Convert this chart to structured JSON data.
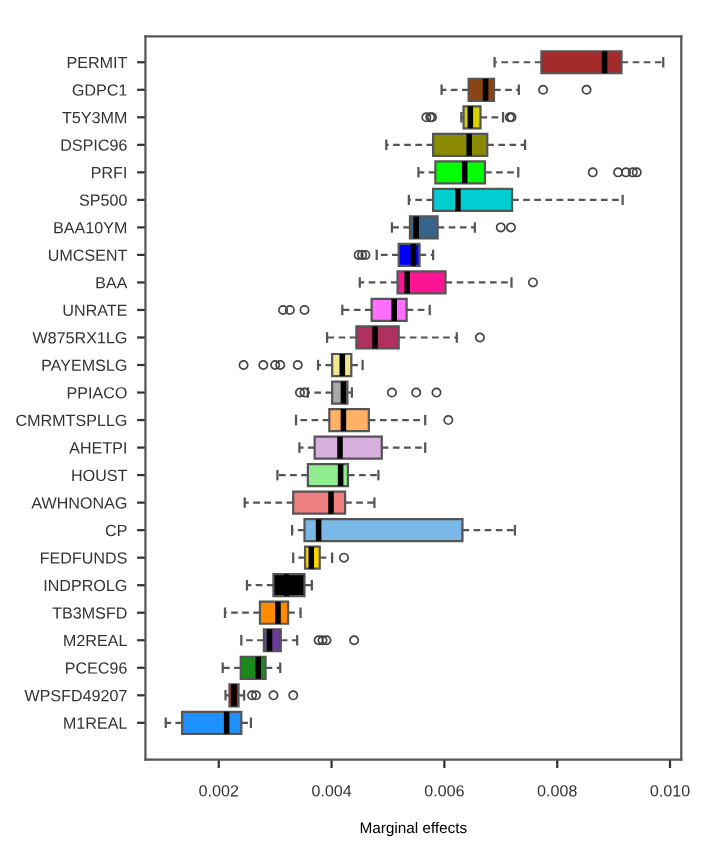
{
  "chart_data": {
    "type": "box",
    "orientation": "horizontal",
    "xlabel": "Marginal effects",
    "categories": [
      "PERMIT",
      "GDPC1",
      "T5Y3MM",
      "DSPIC96",
      "PRFI",
      "SP500",
      "BAA10YM",
      "UMCSENT",
      "BAA",
      "UNRATE",
      "W875RX1LG",
      "PAYEMSLG",
      "PPIACO",
      "CMRMTSPLLG",
      "AHETPI",
      "HOUST",
      "AWHNONAG",
      "CP",
      "FEDFUNDS",
      "INDPROLG",
      "TB3MSFD",
      "M2REAL",
      "PCEC96",
      "WPSFD49207",
      "M1REAL"
    ],
    "colors": [
      "#a52a2a",
      "#8b4513",
      "#d4d400",
      "#8b8b00",
      "#00ff00",
      "#00ced1",
      "#36648b",
      "#0000ff",
      "#ff1493",
      "#ff6eff",
      "#b03060",
      "#f0e68c",
      "#a9a9a9",
      "#ffb266",
      "#d8b0e0",
      "#90ee90",
      "#f08080",
      "#7ab8e8",
      "#ffd700",
      "#000000",
      "#ff8c00",
      "#6a3d9a",
      "#1a8a1a",
      "#cd0000",
      "#1e90ff"
    ],
    "boxes": [
      {
        "low": 0.00689,
        "q1": 0.00772,
        "median": 0.00884,
        "q3": 0.00914,
        "high": 0.00988
      },
      {
        "low": 0.00595,
        "q1": 0.00643,
        "median": 0.00673,
        "q3": 0.00688,
        "high": 0.00732,
        "outliers": [
          0.00775,
          0.00852
        ]
      },
      {
        "low": 0.0063,
        "q1": 0.00634,
        "median": 0.00646,
        "q3": 0.00664,
        "high": 0.00704,
        "outliers": [
          0.00568,
          0.00575,
          0.00578,
          0.00716,
          0.00719
        ]
      },
      {
        "low": 0.00497,
        "q1": 0.0058,
        "median": 0.00644,
        "q3": 0.00676,
        "high": 0.00743
      },
      {
        "low": 0.00554,
        "q1": 0.00584,
        "median": 0.00636,
        "q3": 0.00672,
        "high": 0.00731,
        "outliers": [
          0.00863,
          0.00908,
          0.00922,
          0.00934,
          0.00941
        ]
      },
      {
        "low": 0.00537,
        "q1": 0.0058,
        "median": 0.00624,
        "q3": 0.0072,
        "high": 0.00916
      },
      {
        "low": 0.00507,
        "q1": 0.00539,
        "median": 0.0055,
        "q3": 0.00588,
        "high": 0.00654,
        "outliers": [
          0.007,
          0.00718
        ]
      },
      {
        "low": 0.0048,
        "q1": 0.00519,
        "median": 0.00545,
        "q3": 0.00556,
        "high": 0.0058,
        "outliers": [
          0.00448,
          0.00454,
          0.0046
        ]
      },
      {
        "low": 0.0045,
        "q1": 0.00517,
        "median": 0.00534,
        "q3": 0.00602,
        "high": 0.00719,
        "outliers": [
          0.00757
        ]
      },
      {
        "low": 0.00419,
        "q1": 0.00471,
        "median": 0.00511,
        "q3": 0.00533,
        "high": 0.00574,
        "outliers": [
          0.00314,
          0.00326,
          0.00352
        ]
      },
      {
        "low": 0.00392,
        "q1": 0.00444,
        "median": 0.00477,
        "q3": 0.00519,
        "high": 0.00622,
        "outliers": [
          0.00663
        ]
      },
      {
        "low": 0.00376,
        "q1": 0.00401,
        "median": 0.00419,
        "q3": 0.00435,
        "high": 0.00455,
        "outliers": [
          0.00244,
          0.00279,
          0.003,
          0.00309,
          0.0034
        ]
      },
      {
        "low": 0.00358,
        "q1": 0.00401,
        "median": 0.00421,
        "q3": 0.00428,
        "high": 0.00436,
        "outliers": [
          0.00344,
          0.00352,
          0.00507,
          0.0055,
          0.00586
        ]
      },
      {
        "low": 0.00337,
        "q1": 0.00396,
        "median": 0.00421,
        "q3": 0.00466,
        "high": 0.00566,
        "outliers": [
          0.00607
        ]
      },
      {
        "low": 0.00343,
        "q1": 0.0037,
        "median": 0.00415,
        "q3": 0.00489,
        "high": 0.00566
      },
      {
        "low": 0.00304,
        "q1": 0.00358,
        "median": 0.00416,
        "q3": 0.00429,
        "high": 0.00483
      },
      {
        "low": 0.00246,
        "q1": 0.00332,
        "median": 0.00399,
        "q3": 0.00424,
        "high": 0.00476
      },
      {
        "low": 0.0033,
        "q1": 0.00352,
        "median": 0.00377,
        "q3": 0.00632,
        "high": 0.00725
      },
      {
        "low": 0.00332,
        "q1": 0.00353,
        "median": 0.00364,
        "q3": 0.00379,
        "high": 0.00401,
        "outliers": [
          0.00422
        ]
      },
      {
        "low": 0.0025,
        "q1": 0.00297,
        "median": 0.0032,
        "q3": 0.00352,
        "high": 0.00365
      },
      {
        "low": 0.00211,
        "q1": 0.00273,
        "median": 0.00305,
        "q3": 0.00323,
        "high": 0.00345
      },
      {
        "low": 0.0024,
        "q1": 0.0028,
        "median": 0.0029,
        "q3": 0.0031,
        "high": 0.00339,
        "outliers": [
          0.00377,
          0.00384,
          0.00391,
          0.0044
        ]
      },
      {
        "low": 0.00207,
        "q1": 0.00239,
        "median": 0.0027,
        "q3": 0.00283,
        "high": 0.00309
      },
      {
        "low": 0.00212,
        "q1": 0.00219,
        "median": 0.00227,
        "q3": 0.00235,
        "high": 0.00245,
        "outliers": [
          0.00259,
          0.00266,
          0.00297,
          0.00332
        ]
      },
      {
        "low": 0.00106,
        "q1": 0.00135,
        "median": 0.00214,
        "q3": 0.0024,
        "high": 0.00257
      }
    ],
    "xlim": [
      0.0007,
      0.0102
    ],
    "xticks": [
      {
        "value": 0.002,
        "label": "0.002"
      },
      {
        "value": 0.004,
        "label": "0.004"
      },
      {
        "value": 0.006,
        "label": "0.006"
      },
      {
        "value": 0.008,
        "label": "0.008"
      },
      {
        "value": 0.01,
        "label": "0.010"
      }
    ],
    "grid": false
  }
}
